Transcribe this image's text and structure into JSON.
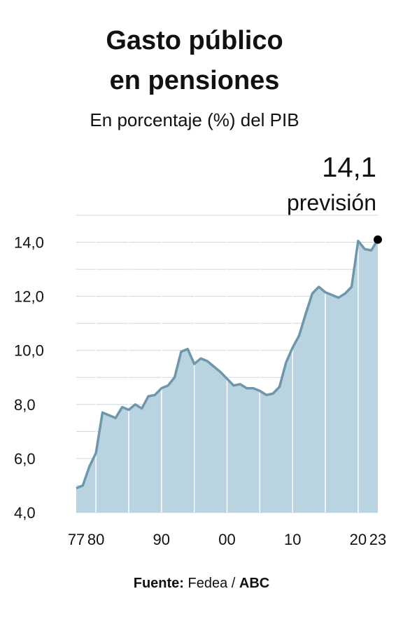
{
  "chart_data": {
    "type": "area",
    "title": [
      "Gasto público",
      "en pensiones"
    ],
    "subtitle": "En porcentaje (%) del PIB",
    "annotation": {
      "value": "14,1",
      "text": "previsión"
    },
    "x": [
      1977,
      1978,
      1979,
      1980,
      1981,
      1982,
      1983,
      1984,
      1985,
      1986,
      1987,
      1988,
      1989,
      1990,
      1991,
      1992,
      1993,
      1994,
      1995,
      1996,
      1997,
      1998,
      1999,
      2000,
      2001,
      2002,
      2003,
      2004,
      2005,
      2006,
      2007,
      2008,
      2009,
      2010,
      2011,
      2012,
      2013,
      2014,
      2015,
      2016,
      2017,
      2018,
      2019,
      2020,
      2021,
      2022,
      2023
    ],
    "values": [
      4.9,
      5.0,
      5.7,
      6.2,
      7.7,
      7.6,
      7.5,
      7.9,
      7.8,
      8.0,
      7.85,
      8.3,
      8.35,
      8.6,
      8.7,
      9.0,
      9.95,
      10.05,
      9.5,
      9.7,
      9.6,
      9.4,
      9.2,
      8.95,
      8.7,
      8.75,
      8.6,
      8.6,
      8.5,
      8.35,
      8.4,
      8.65,
      9.55,
      10.1,
      10.55,
      11.35,
      12.1,
      12.35,
      12.15,
      12.05,
      11.95,
      12.1,
      12.35,
      14.05,
      13.75,
      13.7,
      14.1
    ],
    "color": "#6f97ab",
    "fill": "#b9d3e0",
    "xlim": [
      1977,
      2023
    ],
    "xticks": [
      {
        "value": 1977,
        "label": "77"
      },
      {
        "value": 1980,
        "label": "80"
      },
      {
        "value": 1990,
        "label": "90"
      },
      {
        "value": 2000,
        "label": "00"
      },
      {
        "value": 2010,
        "label": "10"
      },
      {
        "value": 2020,
        "label": "20"
      },
      {
        "value": 2023,
        "label": "23"
      }
    ],
    "xgrid": [
      1980,
      1985,
      1990,
      1995,
      2000,
      2005,
      2010,
      2015,
      2020
    ],
    "ylim": [
      4,
      15
    ],
    "yticks": [
      {
        "value": 4,
        "label": "4,0"
      },
      {
        "value": 6,
        "label": "6,0"
      },
      {
        "value": 8,
        "label": "8,0"
      },
      {
        "value": 10,
        "label": "10,0"
      },
      {
        "value": 12,
        "label": "12,0"
      },
      {
        "value": 14,
        "label": "14,0"
      }
    ],
    "ygrid": [
      4,
      5,
      6,
      7,
      8,
      9,
      10,
      11,
      12,
      13,
      14,
      15
    ],
    "source": {
      "label": "Fuente:",
      "text": "Fedea",
      "separator": "/",
      "brand": "ABC"
    }
  }
}
